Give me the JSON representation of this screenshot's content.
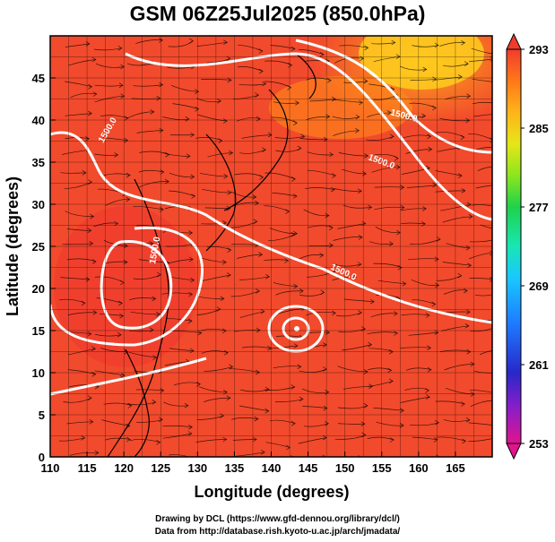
{
  "title": "GSM 06Z25Jul2025 (850.0hPa)",
  "credits": {
    "line1": "Drawing by DCL (https://www.gfd-dennou.org/library/dcl/)",
    "line2": "Data from http://database.rish.kyoto-u.ac.jp/arch/jmadata/"
  },
  "chart_data": {
    "type": "heatmap",
    "title": "GSM 06Z25Jul2025 (850.0hPa)",
    "xlabel": "Longitude (degrees)",
    "ylabel": "Latitude (degrees)",
    "xlim": [
      110,
      170
    ],
    "ylim": [
      0,
      50
    ],
    "x_ticks": [
      "110",
      "115",
      "120",
      "125",
      "130",
      "135",
      "140",
      "145",
      "150",
      "155",
      "160",
      "165"
    ],
    "y_ticks": [
      "0",
      "5",
      "10",
      "15",
      "20",
      "25",
      "30",
      "35",
      "40",
      "45"
    ],
    "grid": true,
    "colorbar": {
      "min": 253,
      "max": 293,
      "ticks": [
        "293",
        "285",
        "277",
        "269",
        "261",
        "253"
      ],
      "colors": [
        "#e0148c",
        "#8a1ec8",
        "#2828c8",
        "#1e78ff",
        "#19c8ff",
        "#19e6b4",
        "#1ed24b",
        "#8ce61e",
        "#e6e619",
        "#ffb419",
        "#ff7819",
        "#f03c2d"
      ]
    },
    "contour_labels": [
      "1500.0",
      "1500.0",
      "1500.0",
      "1500.0",
      "1500.0"
    ],
    "features": [
      "temperature shading",
      "geopotential height contours",
      "wind streamlines",
      "coastlines"
    ]
  }
}
